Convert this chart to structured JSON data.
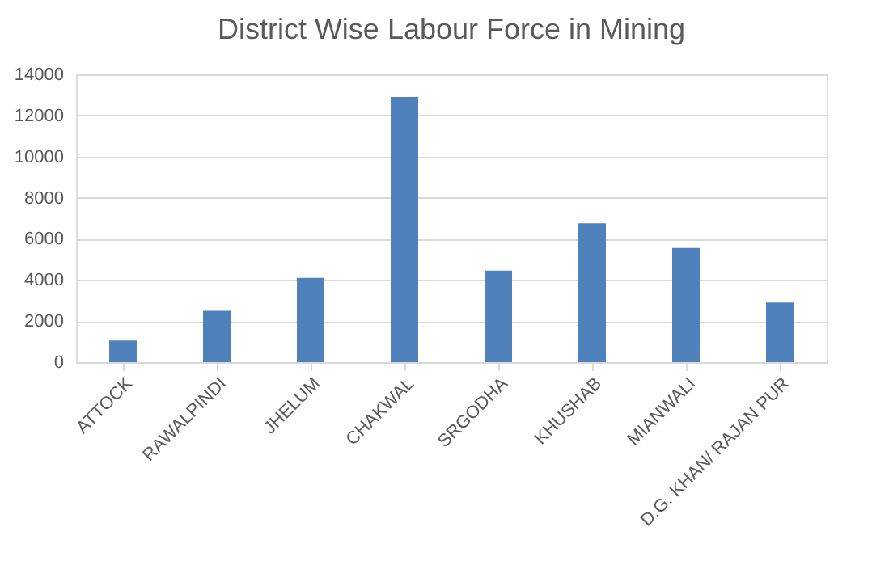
{
  "chart_data": {
    "type": "bar",
    "title": "District Wise Labour Force in Mining",
    "categories": [
      "ATTOCK",
      "RAWALPINDI",
      "JHELUM",
      "CHAKWAL",
      "SRGODHA",
      "KHUSHAB",
      "MIANWALI",
      "D.G. KHAN/ RAJAN PUR"
    ],
    "values": [
      1050,
      2500,
      4100,
      12900,
      4450,
      6750,
      5550,
      2900
    ],
    "color": "#4f81bd",
    "ylim": [
      0,
      14000
    ],
    "yticks": [
      0,
      2000,
      4000,
      6000,
      8000,
      10000,
      12000,
      14000
    ],
    "grid": "y"
  }
}
